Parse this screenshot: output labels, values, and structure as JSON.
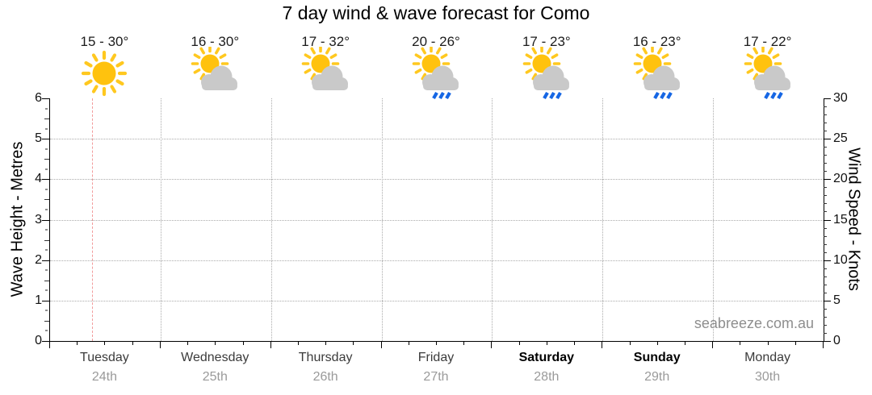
{
  "title": "7 day wind & wave forecast for Como",
  "watermark": "seabreeze.com.au",
  "colors": {
    "sun_body": "#FFC20E",
    "sun_rays": "#FFC81F",
    "cloud": "#C9C9C9",
    "rain": "#1566E4",
    "now_line": "#F29B9B",
    "gridline": "#ABABAB",
    "axis": "#000000",
    "day_text": "#3B3B3B",
    "date_text": "#9A9A9A",
    "watermark_text": "#8E8E8E"
  },
  "chart_data": {
    "type": "table",
    "title": "7 day wind & wave forecast for Como",
    "left_axis": {
      "label": "Wave Height - Metres",
      "min": 0,
      "max": 6,
      "major_step": 1,
      "minor_step": 0.25,
      "ticks": [
        0,
        1,
        2,
        3,
        4,
        5,
        6
      ]
    },
    "right_axis": {
      "label": "Wind Speed - Knots",
      "min": 0,
      "max": 30,
      "major_step": 5,
      "minor_step": 1,
      "ticks": [
        0,
        5,
        10,
        15,
        20,
        25,
        30
      ]
    },
    "grid": true,
    "series": [],
    "now_line": {
      "day": "Tuesday",
      "day_index": 0,
      "day_fraction": 0.38
    },
    "days": [
      {
        "name": "Tuesday",
        "date": "24th",
        "temp": "15 - 30°",
        "icon": "sunny",
        "weekend": false
      },
      {
        "name": "Wednesday",
        "date": "25th",
        "temp": "16 - 30°",
        "icon": "sun-cloud",
        "weekend": false
      },
      {
        "name": "Thursday",
        "date": "26th",
        "temp": "17 - 32°",
        "icon": "sun-cloud",
        "weekend": false
      },
      {
        "name": "Friday",
        "date": "27th",
        "temp": "20 - 26°",
        "icon": "sun-cloud-rain",
        "weekend": false
      },
      {
        "name": "Saturday",
        "date": "28th",
        "temp": "17 - 23°",
        "icon": "sun-cloud-rain",
        "weekend": true
      },
      {
        "name": "Sunday",
        "date": "29th",
        "temp": "16 - 23°",
        "icon": "sun-cloud-rain",
        "weekend": true
      },
      {
        "name": "Monday",
        "date": "30th",
        "temp": "17 - 22°",
        "icon": "sun-cloud-rain",
        "weekend": false
      }
    ]
  }
}
